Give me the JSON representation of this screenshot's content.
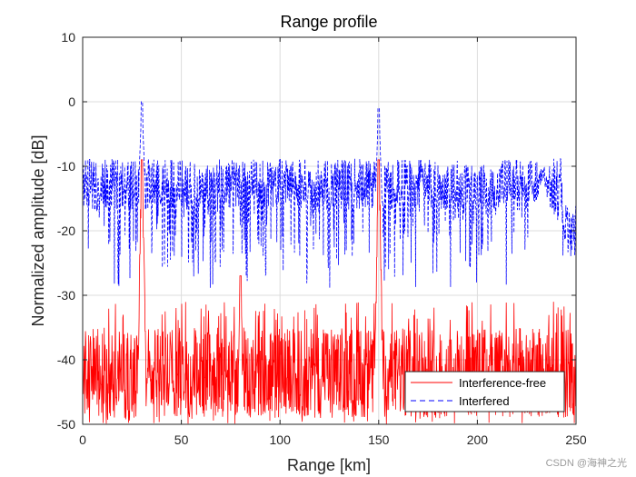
{
  "chart_data": {
    "type": "line",
    "title": "Range profile",
    "xlabel": "Range [km]",
    "ylabel": "Normalized amplitude [dB]",
    "xlim": [
      0,
      250
    ],
    "ylim": [
      -50,
      10
    ],
    "xticks": [
      "0",
      "50",
      "100",
      "150",
      "200",
      "250"
    ],
    "yticks": [
      "10",
      "0",
      "-10",
      "-20",
      "-30",
      "-40",
      "-50"
    ],
    "xtick_values": [
      0,
      50,
      100,
      150,
      200,
      250
    ],
    "ytick_values": [
      10,
      0,
      -10,
      -20,
      -30,
      -40,
      -50
    ],
    "grid": true,
    "legend_position": "bottom-right",
    "series": [
      {
        "name": "Interference-free",
        "color": "#ff0000",
        "style": "solid",
        "noise_floor_db": [
          -50,
          -33
        ],
        "peaks": [
          {
            "x": 30,
            "y": -9
          },
          {
            "x": 80,
            "y": -27
          },
          {
            "x": 150,
            "y": -9
          }
        ]
      },
      {
        "name": "Interfered",
        "color": "#0000ff",
        "style": "dashed",
        "noise_floor_db": [
          -29,
          -9
        ],
        "peaks": [
          {
            "x": 30,
            "y": 0
          },
          {
            "x": 150,
            "y": -1
          },
          {
            "x": 233,
            "y": -9
          }
        ]
      }
    ]
  },
  "watermark": "CSDN @海神之光"
}
